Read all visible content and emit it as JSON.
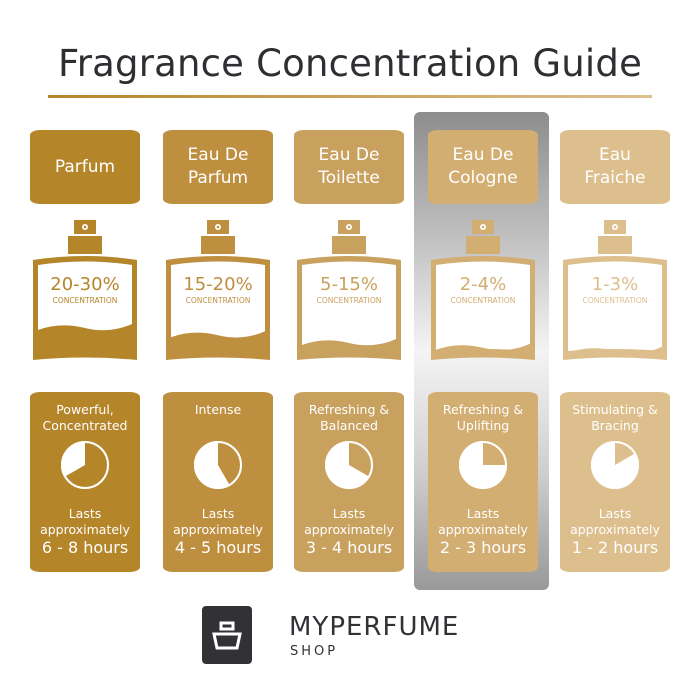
{
  "title": "Fragrance Concentration Guide",
  "brand": {
    "name": "MYPERFUME",
    "sub": "SHOP"
  },
  "concentration_label": "CONCENTRATION",
  "lasts_label": [
    "Lasts",
    "approximately"
  ],
  "highlighted": "Eau De Cologne",
  "types": [
    {
      "name": [
        "Parfum"
      ],
      "percent": "20-30%",
      "desc": [
        "Powerful,",
        "Concentrated"
      ],
      "hours": "6 - 8 hours",
      "max_hours": 8,
      "fill_level": 0.45,
      "color": "#b5852a"
    },
    {
      "name": [
        "Eau De",
        "Parfum"
      ],
      "percent": "15-20%",
      "desc": [
        "Intense"
      ],
      "hours": "4 - 5 hours",
      "max_hours": 5,
      "fill_level": 0.33,
      "color": "#bf8f40"
    },
    {
      "name": [
        "Eau De",
        "Toilette"
      ],
      "percent": "5-15%",
      "desc": [
        "Refreshing &",
        "Balanced"
      ],
      "hours": "3 - 4 hours",
      "max_hours": 4,
      "fill_level": 0.2,
      "color": "#c9a15e"
    },
    {
      "name": [
        "Eau De",
        "Cologne"
      ],
      "percent": "2-4%",
      "desc": [
        "Refreshing &",
        "Uplifting"
      ],
      "hours": "2 - 3 hours",
      "max_hours": 3,
      "fill_level": 0.12,
      "color": "#d3ae72"
    },
    {
      "name": [
        "Eau",
        "Fraiche"
      ],
      "percent": "1-3%",
      "desc": [
        "Stimulating &",
        "Bracing"
      ],
      "hours": "1 - 2 hours",
      "max_hours": 2,
      "fill_level": 0.07,
      "color": "#ddbf8d"
    }
  ]
}
